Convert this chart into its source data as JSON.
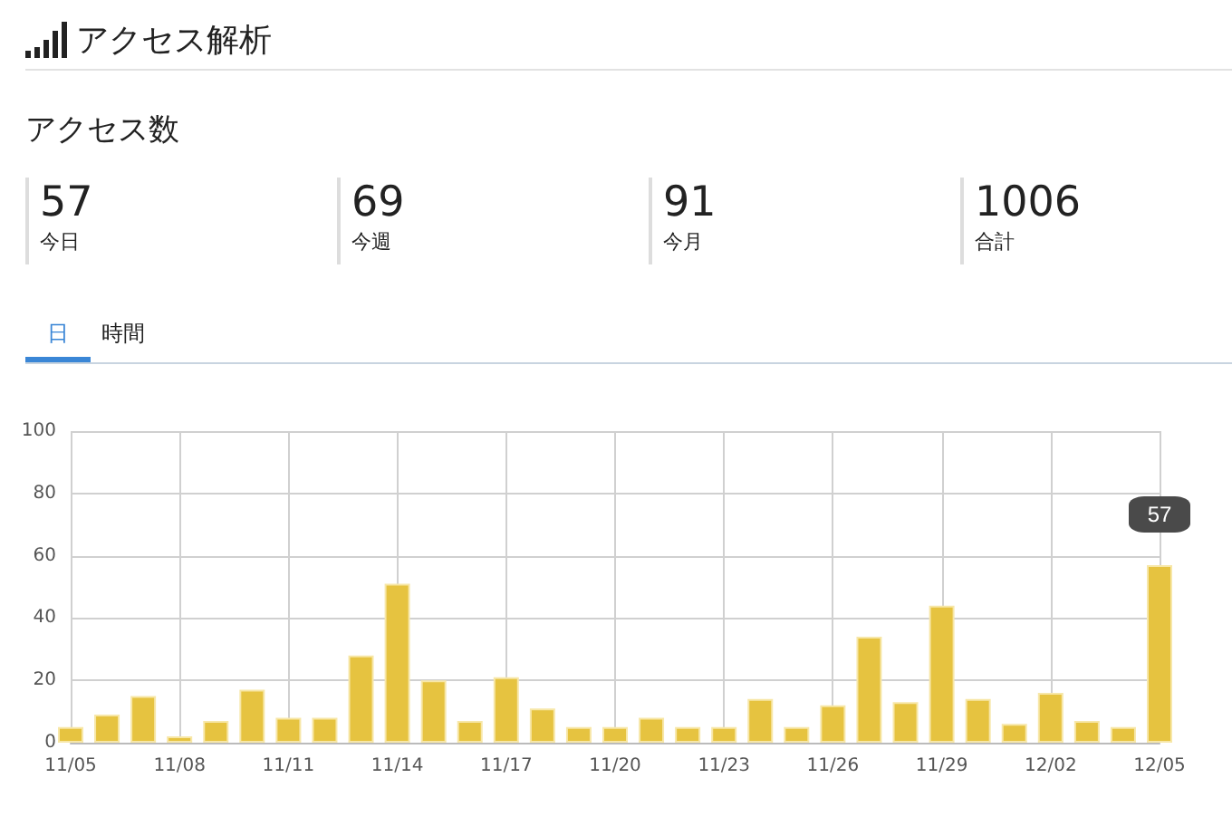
{
  "chart_data": {
    "type": "bar",
    "title": "アクセス解析",
    "subtitle": "アクセス数",
    "categories": [
      "11/05",
      null,
      null,
      "11/08",
      null,
      null,
      "11/11",
      null,
      null,
      "11/14",
      null,
      null,
      "11/17",
      null,
      null,
      "11/20",
      null,
      null,
      "11/23",
      null,
      null,
      "11/26",
      null,
      null,
      "11/29",
      null,
      null,
      "12/02",
      null,
      null,
      "12/05"
    ],
    "values": [
      5,
      9,
      15,
      2,
      7,
      17,
      8,
      8,
      28,
      51,
      20,
      7,
      21,
      11,
      5,
      5,
      8,
      5,
      5,
      14,
      5,
      12,
      34,
      13,
      44,
      14,
      6,
      16,
      7,
      5,
      57
    ],
    "color": "#e6c340",
    "ylim": [
      0,
      100
    ],
    "yticks": [
      0,
      20,
      40,
      60,
      80,
      100
    ],
    "grid": true,
    "annotations": [
      "57",
      "今日",
      "69",
      "今週",
      "91",
      "今月",
      "1006",
      "合計",
      "日",
      "時間",
      {
        "text": "57",
        "x": "12/05",
        "y": 57
      }
    ]
  }
}
